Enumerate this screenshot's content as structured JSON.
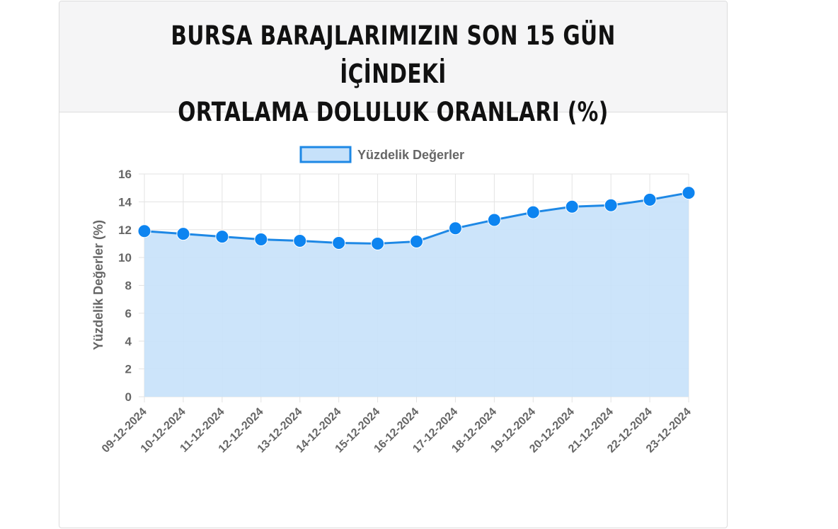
{
  "header": {
    "title_line1": "BURSA BARAJLARIMIZIN SON 15 GÜN İÇİNDEKİ",
    "title_line2": "ORTALAMA DOLULUK ORANLARI (%)"
  },
  "colors": {
    "line": "#1e88e5",
    "point": "#0d84f0",
    "fill": "#c6e1fa",
    "legend_box_fill": "#c6e1fa",
    "legend_box_border": "#1e88e5",
    "grid": "#e3e3e3",
    "tick_text": "#666666"
  },
  "chart_data": {
    "type": "area",
    "title": "",
    "xlabel": "",
    "ylabel": "Yüzdelik Değerler (%)",
    "ylim": [
      0,
      16
    ],
    "yticks": [
      0,
      2,
      4,
      6,
      8,
      10,
      12,
      14,
      16
    ],
    "legend_position": "top",
    "grid": true,
    "categories": [
      "09-12-2024",
      "10-12-2024",
      "11-12-2024",
      "12-12-2024",
      "13-12-2024",
      "14-12-2024",
      "15-12-2024",
      "16-12-2024",
      "17-12-2024",
      "18-12-2024",
      "19-12-2024",
      "20-12-2024",
      "21-12-2024",
      "22-12-2024",
      "23-12-2024"
    ],
    "series": [
      {
        "name": "Yüzdelik Değerler",
        "values": [
          11.9,
          11.7,
          11.5,
          11.3,
          11.2,
          11.05,
          11.0,
          11.15,
          12.1,
          12.7,
          13.25,
          13.65,
          13.75,
          14.15,
          14.65
        ]
      }
    ]
  }
}
